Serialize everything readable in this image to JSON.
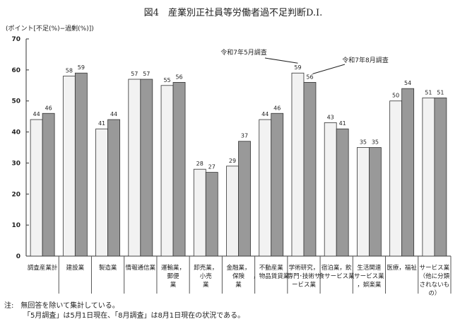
{
  "chart_data": {
    "type": "bar",
    "title": "図4　産業別正社員等労働者過不足判断D.I.",
    "ylabel": "(ポイント[不足(%)−過剰(%)])",
    "xlabel": "",
    "ylim": [
      0,
      70
    ],
    "yticks": [
      0,
      10,
      20,
      30,
      40,
      50,
      60,
      70
    ],
    "grid": false,
    "categories": [
      "調査産業計",
      "建設業",
      "製造業",
      "情報通信業",
      "運輸業，郵便業",
      "卸売業，小売業",
      "金融業，保険業",
      "不動産業，物品賃貸業",
      "学術研究，専門･技術サービス業",
      "宿泊業，飲食サービス業",
      "生活関連サービス業，娯楽業",
      "医療，福祉",
      "サービス業（他に分類されないもの）"
    ],
    "series": [
      {
        "name": "令和7年5月調査",
        "color": "#f2f2f2",
        "values": [
          44,
          58,
          41,
          57,
          55,
          28,
          29,
          44,
          59,
          43,
          35,
          50,
          51
        ]
      },
      {
        "name": "令和7年8月調査",
        "color": "#999999",
        "values": [
          46,
          59,
          44,
          57,
          56,
          27,
          37,
          46,
          56,
          41,
          35,
          54,
          51
        ]
      }
    ],
    "annotations": [
      "令和7年5月調査",
      "令和7年8月調査"
    ]
  },
  "notes": {
    "line1": "注:　無回答を除いて集計している。",
    "line2": "「5月調査」は5月1日現在、「8月調査」は8月1日現在の状況である。"
  }
}
